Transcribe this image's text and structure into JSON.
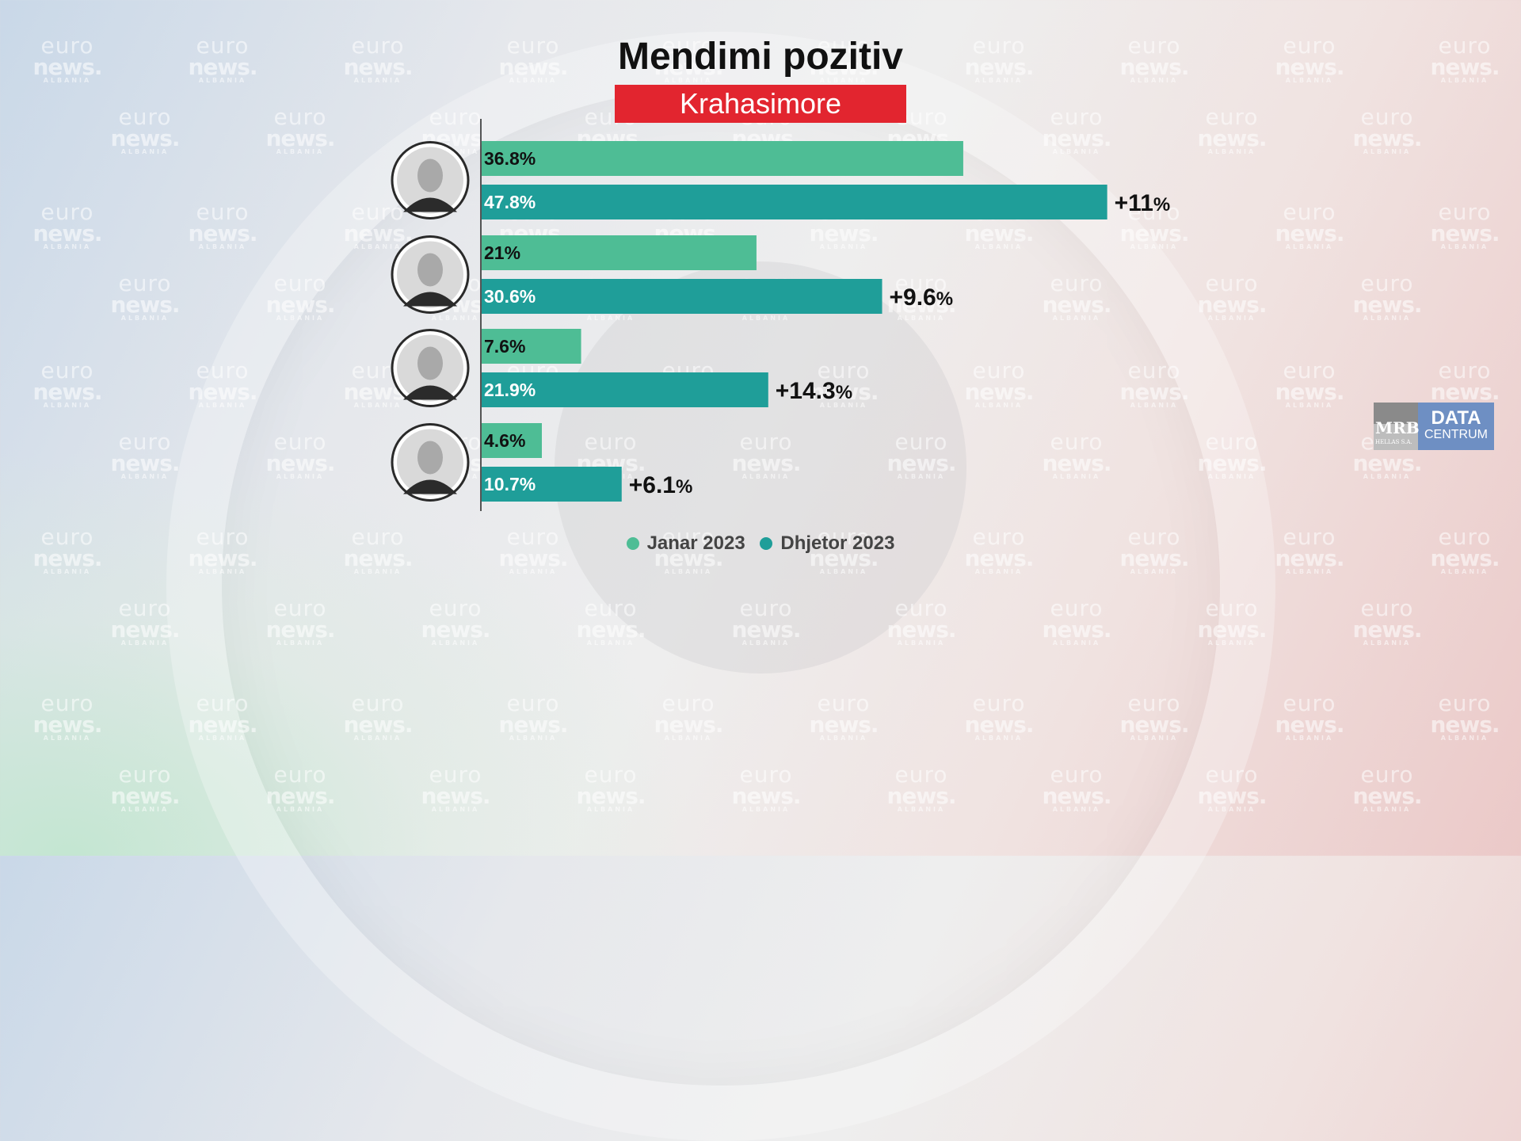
{
  "watermark": {
    "line1": "euro",
    "line2": "news.",
    "line3": "ALBANIA"
  },
  "colors": {
    "jan": "#4ebd95",
    "dec": "#1f9e99",
    "subtitle_bg": "#e2252f"
  },
  "chart_data": {
    "type": "bar",
    "orientation": "horizontal",
    "title": "Mendimi pozitiv",
    "subtitle": "Krahasimore",
    "categories": [
      "",
      "",
      "",
      ""
    ],
    "series": [
      {
        "name": "Janar 2023",
        "values": [
          36.8,
          21,
          7.6,
          4.6
        ],
        "labels": [
          "36.8%",
          "21%",
          "7.6%",
          "4.6%"
        ]
      },
      {
        "name": "Dhjetor 2023",
        "values": [
          47.8,
          30.6,
          21.9,
          10.7
        ],
        "labels": [
          "47.8%",
          "30.6%",
          "21.9%",
          "10.7%"
        ]
      }
    ],
    "changes": [
      {
        "num": "+11",
        "unit": "%"
      },
      {
        "num": "+9.6",
        "unit": "%"
      },
      {
        "num": "+14.3",
        "unit": "%"
      },
      {
        "num": "+6.1",
        "unit": "%"
      }
    ],
    "xlim": [
      0,
      60
    ],
    "grid": false,
    "legend_position": "bottom-center"
  },
  "logo": {
    "mrb": "MRB",
    "mrb_sub": "HELLAS S.A.",
    "data": "DATA",
    "centrum": "CENTRUM"
  }
}
